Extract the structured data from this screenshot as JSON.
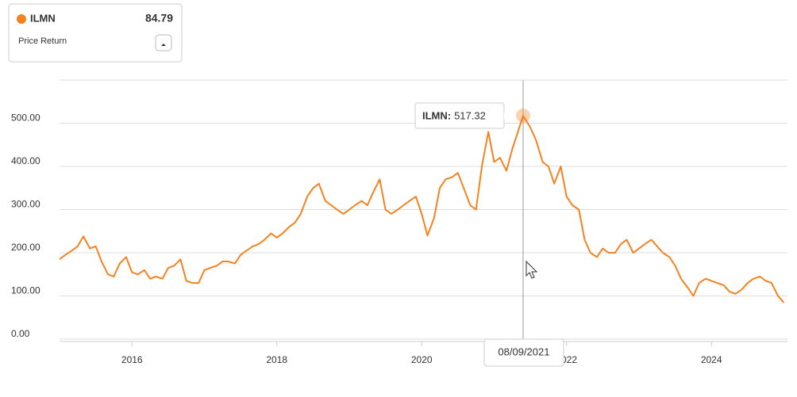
{
  "legend": {
    "name": "ILMN",
    "value": 84.79,
    "subtitle": "Price Return"
  },
  "chart_data": {
    "type": "line",
    "x": [
      2015.0,
      2015.08,
      2015.17,
      2015.25,
      2015.33,
      2015.42,
      2015.5,
      2015.58,
      2015.67,
      2015.75,
      2015.83,
      2015.92,
      2016.0,
      2016.08,
      2016.17,
      2016.25,
      2016.33,
      2016.42,
      2016.5,
      2016.58,
      2016.67,
      2016.75,
      2016.83,
      2016.92,
      2017.0,
      2017.08,
      2017.17,
      2017.25,
      2017.33,
      2017.42,
      2017.5,
      2017.58,
      2017.67,
      2017.75,
      2017.83,
      2017.92,
      2018.0,
      2018.08,
      2018.17,
      2018.25,
      2018.33,
      2018.42,
      2018.5,
      2018.58,
      2018.67,
      2018.75,
      2018.83,
      2018.92,
      2019.0,
      2019.08,
      2019.17,
      2019.25,
      2019.33,
      2019.42,
      2019.5,
      2019.58,
      2019.67,
      2019.75,
      2019.83,
      2019.92,
      2020.0,
      2020.08,
      2020.17,
      2020.25,
      2020.33,
      2020.42,
      2020.5,
      2020.58,
      2020.67,
      2020.75,
      2020.83,
      2020.92,
      2021.0,
      2021.08,
      2021.17,
      2021.25,
      2021.4,
      2021.5,
      2021.58,
      2021.67,
      2021.75,
      2021.83,
      2021.92,
      2022.0,
      2022.08,
      2022.17,
      2022.25,
      2022.33,
      2022.42,
      2022.5,
      2022.58,
      2022.67,
      2022.75,
      2022.83,
      2022.92,
      2023.0,
      2023.08,
      2023.17,
      2023.25,
      2023.33,
      2023.42,
      2023.5,
      2023.58,
      2023.67,
      2023.75,
      2023.83,
      2023.92,
      2024.0,
      2024.08,
      2024.17,
      2024.25,
      2024.33,
      2024.42,
      2024.5,
      2024.58,
      2024.67,
      2024.75,
      2024.83,
      2024.92,
      2025.0
    ],
    "series": [
      {
        "name": "ILMN",
        "color": "#f58220",
        "values": [
          185,
          195,
          205,
          215,
          238,
          210,
          215,
          180,
          150,
          145,
          175,
          190,
          155,
          150,
          160,
          140,
          145,
          140,
          165,
          170,
          185,
          135,
          130,
          130,
          160,
          165,
          170,
          180,
          180,
          175,
          195,
          205,
          215,
          220,
          230,
          245,
          235,
          245,
          260,
          270,
          290,
          330,
          350,
          360,
          320,
          310,
          300,
          290,
          300,
          310,
          320,
          310,
          340,
          370,
          300,
          290,
          300,
          310,
          320,
          330,
          290,
          240,
          280,
          350,
          370,
          375,
          385,
          350,
          310,
          300,
          400,
          480,
          410,
          420,
          390,
          440,
          517.32,
          490,
          460,
          410,
          400,
          360,
          400,
          330,
          310,
          300,
          230,
          200,
          190,
          210,
          200,
          200,
          220,
          230,
          200,
          210,
          220,
          230,
          215,
          200,
          190,
          170,
          140,
          120,
          100,
          130,
          140,
          135,
          130,
          125,
          110,
          105,
          115,
          130,
          140,
          145,
          135,
          130,
          100,
          84.79
        ]
      }
    ],
    "xlim": [
      2015,
      2025.05
    ],
    "xticks": [
      2016,
      2018,
      2020,
      2022,
      2024
    ],
    "ylim": [
      0,
      600
    ],
    "yticks": [
      {
        "value": 0,
        "label": "0.00"
      },
      {
        "value": 100,
        "label": "100.00"
      },
      {
        "value": 200,
        "label": "200.00"
      },
      {
        "value": 300,
        "label": "300.00"
      },
      {
        "value": 400,
        "label": "400.00"
      },
      {
        "value": 500,
        "label": "500.00"
      }
    ],
    "grid": true,
    "tooltip": {
      "label": "ILMN:",
      "value": 517.32,
      "date": "08/09/2021",
      "x": 2021.4
    }
  }
}
